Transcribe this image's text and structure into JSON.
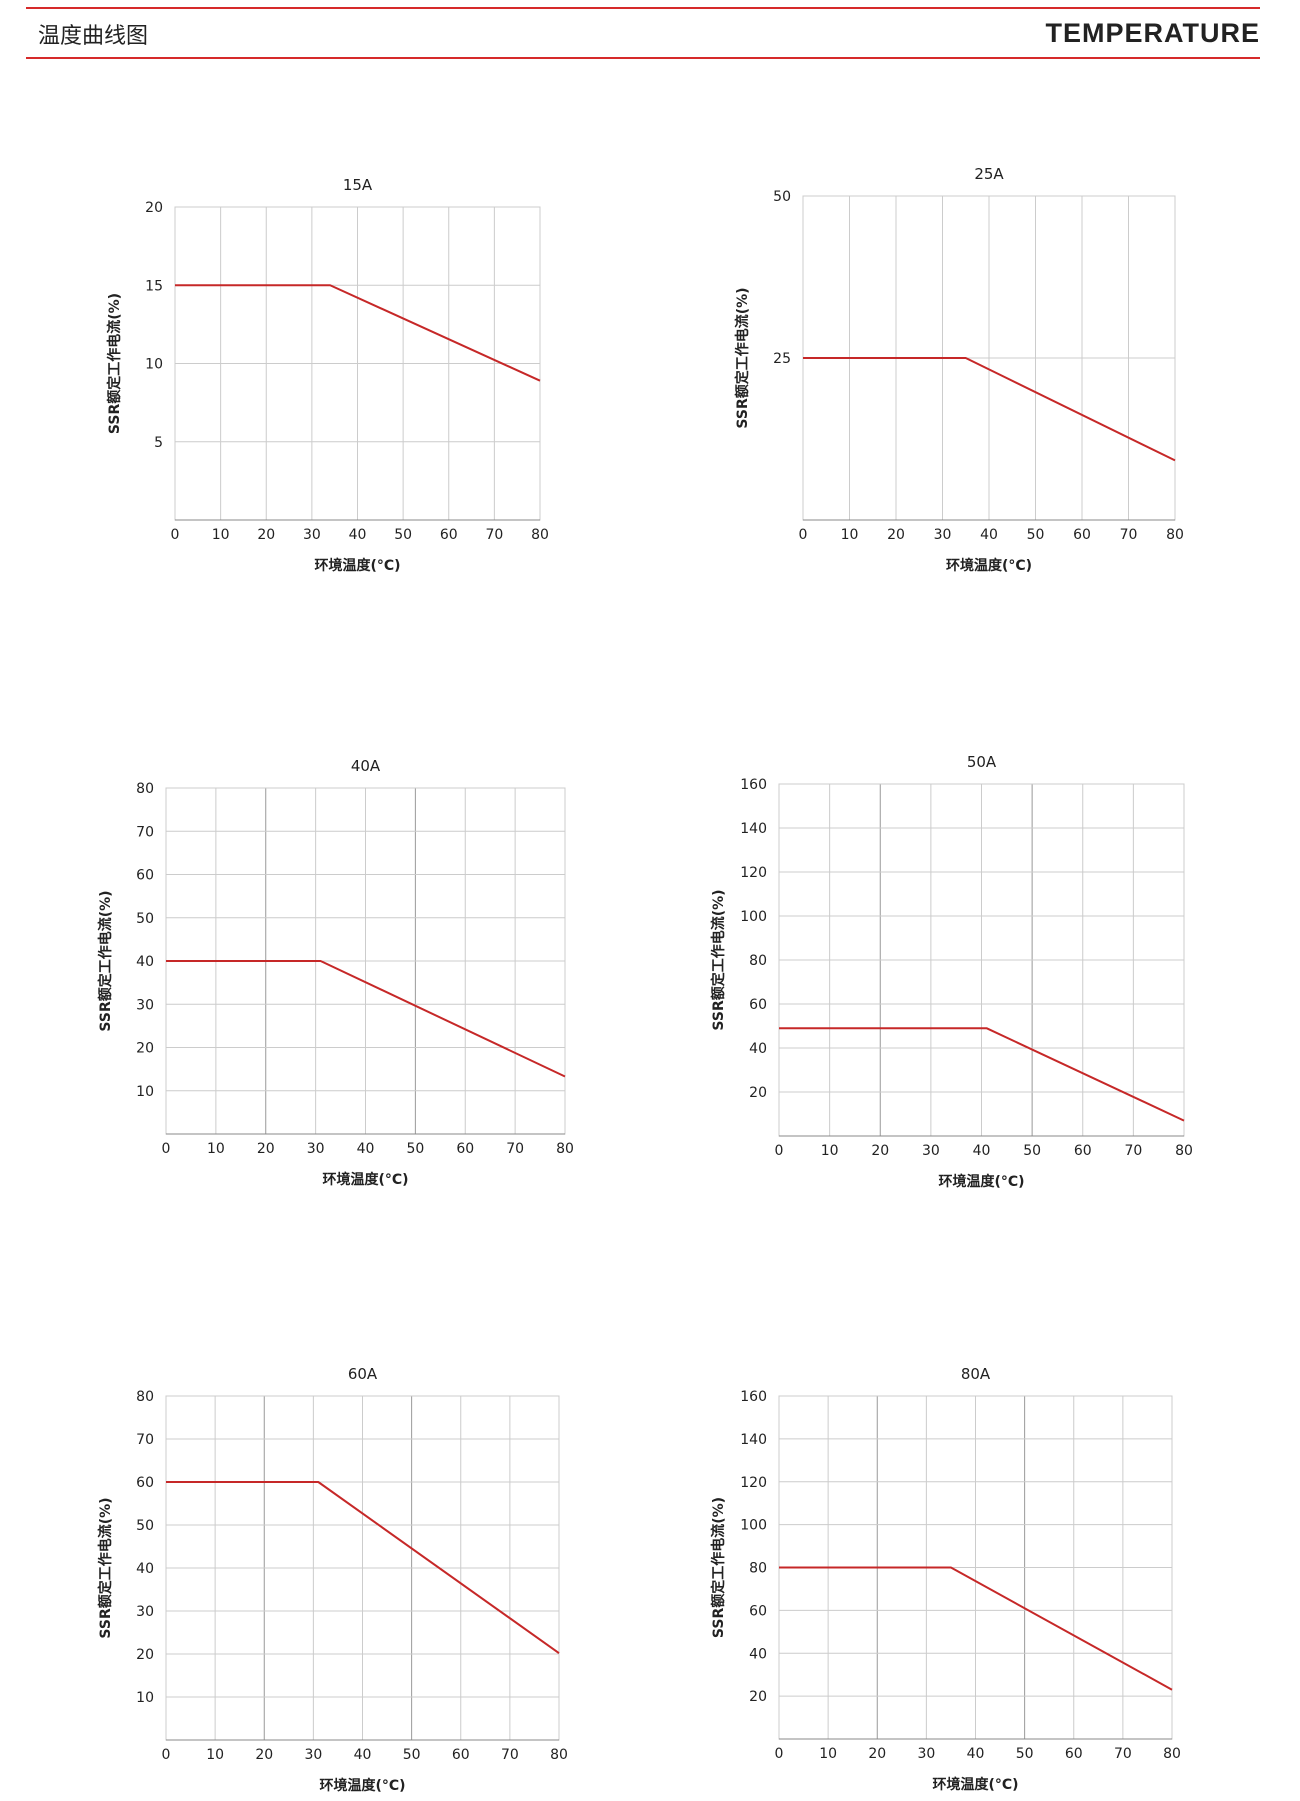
{
  "header": {
    "title_cn": "温度曲线图",
    "title_en": "TEMPERATURE"
  },
  "colors": {
    "accent": "#d62a2a",
    "grid": "#cccccc",
    "grid_dark": "#999999",
    "curve": "#c62828"
  },
  "chart_data": [
    {
      "type": "line",
      "title": "15A",
      "xlabel": "环境温度(°C)",
      "ylabel": "SSR额定工作电流(%)",
      "xlim": [
        0,
        80
      ],
      "ylim": [
        0,
        20
      ],
      "xticks": [
        0,
        10,
        20,
        30,
        40,
        50,
        60,
        70,
        80
      ],
      "yticks": [
        5,
        10,
        15,
        20
      ],
      "series": [
        {
          "name": "15A",
          "x": [
            0,
            34,
            80
          ],
          "y": [
            15,
            15,
            8.9
          ]
        }
      ]
    },
    {
      "type": "line",
      "title": "25A",
      "xlabel": "环境温度(°C)",
      "ylabel": "SSR额定工作电流(%)",
      "xlim": [
        0,
        80
      ],
      "ylim": [
        0,
        50
      ],
      "xticks": [
        0,
        10,
        20,
        30,
        40,
        50,
        60,
        70,
        80
      ],
      "yticks": [
        25,
        50
      ],
      "series": [
        {
          "name": "25A",
          "x": [
            0,
            35,
            80
          ],
          "y": [
            25,
            25,
            9.2
          ]
        }
      ]
    },
    {
      "type": "line",
      "title": "40A",
      "xlabel": "环境温度(°C)",
      "ylabel": "SSR额定工作电流(%)",
      "xlim": [
        0,
        80
      ],
      "ylim": [
        0,
        80
      ],
      "xticks": [
        0,
        10,
        20,
        30,
        40,
        50,
        60,
        70,
        80
      ],
      "yticks": [
        10,
        20,
        30,
        40,
        50,
        60,
        70,
        80
      ],
      "series": [
        {
          "name": "40A",
          "x": [
            0,
            31,
            80
          ],
          "y": [
            40,
            40,
            13.3
          ]
        }
      ]
    },
    {
      "type": "line",
      "title": "50A",
      "xlabel": "环境温度(°C)",
      "ylabel": "SSR额定工作电流(%)",
      "xlim": [
        0,
        80
      ],
      "ylim": [
        0,
        160
      ],
      "xticks": [
        0,
        10,
        20,
        30,
        40,
        50,
        60,
        70,
        80
      ],
      "yticks": [
        20,
        40,
        60,
        80,
        100,
        120,
        140,
        160
      ],
      "series": [
        {
          "name": "50A",
          "x": [
            0,
            41,
            80
          ],
          "y": [
            49,
            49,
            7
          ]
        }
      ]
    },
    {
      "type": "line",
      "title": "60A",
      "xlabel": "环境温度(°C)",
      "ylabel": "SSR额定工作电流(%)",
      "xlim": [
        0,
        80
      ],
      "ylim": [
        0,
        80
      ],
      "xticks": [
        0,
        10,
        20,
        30,
        40,
        50,
        60,
        70,
        80
      ],
      "yticks": [
        10,
        20,
        30,
        40,
        50,
        60,
        70,
        80
      ],
      "series": [
        {
          "name": "60A",
          "x": [
            0,
            31,
            80
          ],
          "y": [
            60,
            60,
            20.2
          ]
        }
      ]
    },
    {
      "type": "line",
      "title": "80A",
      "xlabel": "环境温度(°C)",
      "ylabel": "SSR额定工作电流(%)",
      "xlim": [
        0,
        80
      ],
      "ylim": [
        0,
        160
      ],
      "xticks": [
        0,
        10,
        20,
        30,
        40,
        50,
        60,
        70,
        80
      ],
      "yticks": [
        20,
        40,
        60,
        80,
        100,
        120,
        140,
        160
      ],
      "series": [
        {
          "name": "80A",
          "x": [
            0,
            35,
            80
          ],
          "y": [
            80,
            80,
            23
          ]
        }
      ]
    }
  ]
}
